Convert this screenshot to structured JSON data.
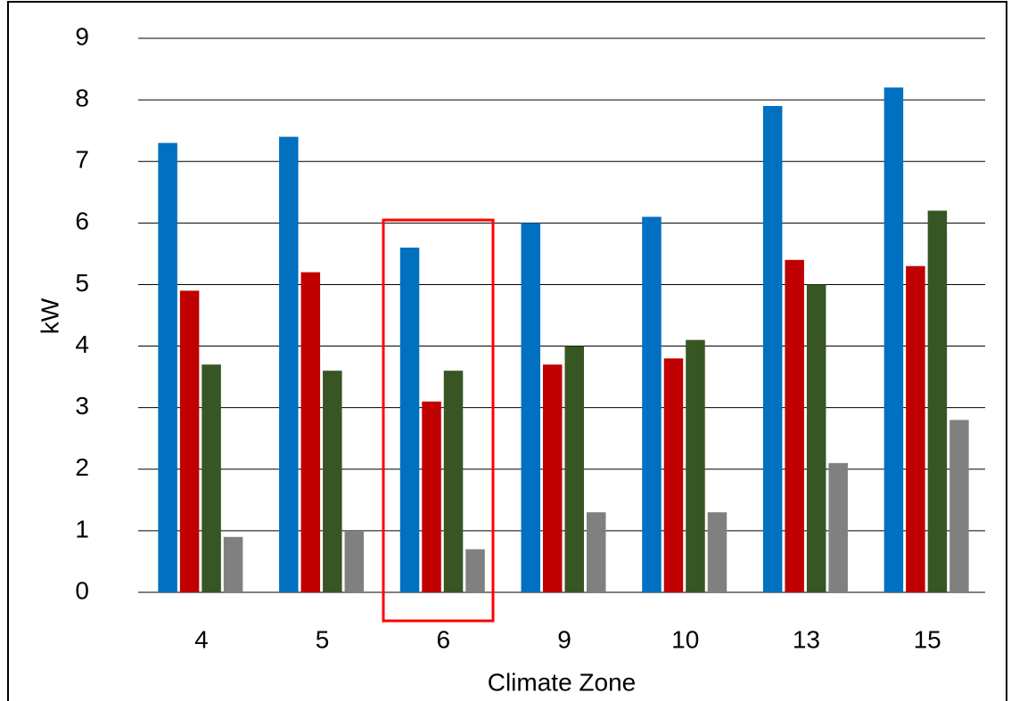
{
  "chart_data": {
    "type": "bar",
    "x_label": "Climate Zone",
    "y_label": "kW",
    "categories": [
      "4",
      "5",
      "6",
      "9",
      "10",
      "13",
      "15"
    ],
    "series": [
      {
        "color": "#0070c0",
        "values": [
          7.3,
          7.4,
          5.6,
          6.0,
          6.1,
          7.9,
          8.2
        ]
      },
      {
        "color": "#c00000",
        "values": [
          4.9,
          5.2,
          3.1,
          3.7,
          3.8,
          5.4,
          5.3
        ]
      },
      {
        "color": "#375623",
        "values": [
          3.7,
          3.6,
          3.6,
          4.0,
          4.1,
          5.0,
          6.2
        ]
      },
      {
        "color": "#808080",
        "values": [
          0.9,
          1.0,
          0.7,
          1.3,
          1.3,
          2.1,
          2.8
        ]
      }
    ],
    "ylim": [
      0,
      9
    ],
    "yticks": [
      0,
      1,
      2,
      3,
      4,
      5,
      6,
      7,
      8,
      9
    ],
    "grid": true
  }
}
